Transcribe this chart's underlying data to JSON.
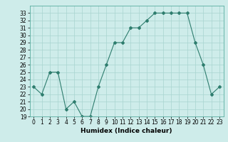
{
  "x": [
    0,
    1,
    2,
    3,
    4,
    5,
    6,
    7,
    8,
    9,
    10,
    11,
    12,
    13,
    14,
    15,
    16,
    17,
    18,
    19,
    20,
    21,
    22,
    23
  ],
  "y": [
    23,
    22,
    25,
    25,
    20,
    21,
    19,
    19,
    23,
    26,
    29,
    29,
    31,
    31,
    32,
    33,
    33,
    33,
    33,
    33,
    29,
    26,
    22,
    23
  ],
  "title": "",
  "xlabel": "Humidex (Indice chaleur)",
  "ylabel": "",
  "xlim": [
    -0.5,
    23.5
  ],
  "ylim": [
    19,
    34
  ],
  "yticks": [
    19,
    20,
    21,
    22,
    23,
    24,
    25,
    26,
    27,
    28,
    29,
    30,
    31,
    32,
    33
  ],
  "xticks": [
    0,
    1,
    2,
    3,
    4,
    5,
    6,
    7,
    8,
    9,
    10,
    11,
    12,
    13,
    14,
    15,
    16,
    17,
    18,
    19,
    20,
    21,
    22,
    23
  ],
  "line_color": "#2e7d6e",
  "marker": "D",
  "marker_size": 2.0,
  "bg_color": "#ceecea",
  "grid_color": "#a8d4d0",
  "label_fontsize": 6.5,
  "tick_fontsize": 5.5
}
